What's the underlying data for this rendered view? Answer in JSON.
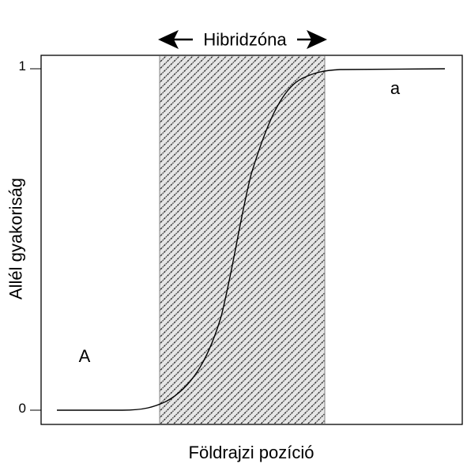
{
  "hybrid_zone": {
    "label": "Hibridzóna"
  },
  "axes": {
    "y_label": "Allél gyakoriság",
    "x_label": "Földrajzi pozíció",
    "y_tick_top": "1",
    "y_tick_bottom": "0"
  },
  "allele_labels": {
    "left": "A",
    "right": "a"
  },
  "colors": {
    "line": "#000000",
    "hatch": "#222222",
    "zone_background": "#e6e6e6"
  }
}
